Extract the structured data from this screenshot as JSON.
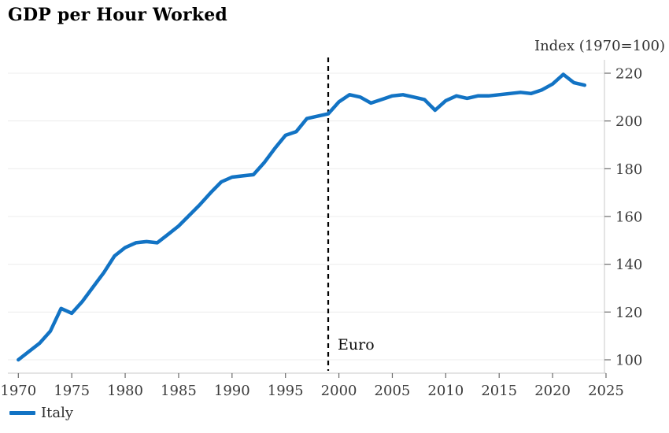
{
  "title": "GDP per Hour Worked",
  "axis_unit_label": "Index (1970=100)",
  "legend": {
    "items": [
      {
        "label": "Italy",
        "color": "#1273c4"
      }
    ]
  },
  "annotation": {
    "label": "Euro",
    "year": 1999
  },
  "colors": {
    "line": "#1273c4",
    "gridline": "#ececec",
    "axis_line": "#c8c8c8",
    "tick_mark": "#6b6b6b",
    "tick_text": "#3c3c3c",
    "annotation_line": "#000000",
    "background": "#ffffff"
  },
  "chart_data": {
    "type": "line",
    "title": "GDP per Hour Worked",
    "unit_label": "Index (1970=100)",
    "xlabel": "",
    "ylabel": "Index (1970=100)",
    "y_axis_side": "right",
    "grid": "horizontal",
    "legend_position": "bottom-left",
    "xlim": [
      1969,
      2025.2
    ],
    "ylim": [
      94,
      226
    ],
    "xticks": [
      1970,
      1975,
      1980,
      1985,
      1990,
      1995,
      2000,
      2005,
      2010,
      2015,
      2020,
      2025
    ],
    "yticks": [
      100,
      120,
      140,
      160,
      180,
      200,
      220
    ],
    "x": [
      1970,
      1971,
      1972,
      1973,
      1974,
      1975,
      1976,
      1977,
      1978,
      1979,
      1980,
      1981,
      1982,
      1983,
      1984,
      1985,
      1986,
      1987,
      1988,
      1989,
      1990,
      1991,
      1992,
      1993,
      1994,
      1995,
      1996,
      1997,
      1998,
      1999,
      2000,
      2001,
      2002,
      2003,
      2004,
      2005,
      2006,
      2007,
      2008,
      2009,
      2010,
      2011,
      2012,
      2013,
      2014,
      2015,
      2016,
      2017,
      2018,
      2019,
      2020,
      2021,
      2022,
      2023
    ],
    "series": [
      {
        "name": "Italy",
        "color": "#1273c4",
        "values": [
          100,
          103.5,
          107,
          112,
          121.5,
          119.5,
          124.5,
          130.5,
          136.5,
          143.5,
          147,
          149,
          149.5,
          149,
          152.5,
          156,
          160.5,
          165,
          170,
          174.5,
          176.5,
          177,
          177.5,
          182.5,
          188.5,
          194,
          195.5,
          201,
          202,
          203,
          208,
          211,
          210,
          207.5,
          209,
          210.5,
          211,
          210,
          209,
          204.5,
          208.5,
          210.5,
          209.5,
          210.5,
          210.5,
          211,
          211.5,
          212,
          211.5,
          213,
          215.5,
          219.5,
          216,
          215
        ]
      }
    ],
    "annotations": [
      {
        "type": "vline",
        "x": 1999,
        "label": "Euro",
        "style": "dashed",
        "color": "#000000"
      }
    ]
  }
}
